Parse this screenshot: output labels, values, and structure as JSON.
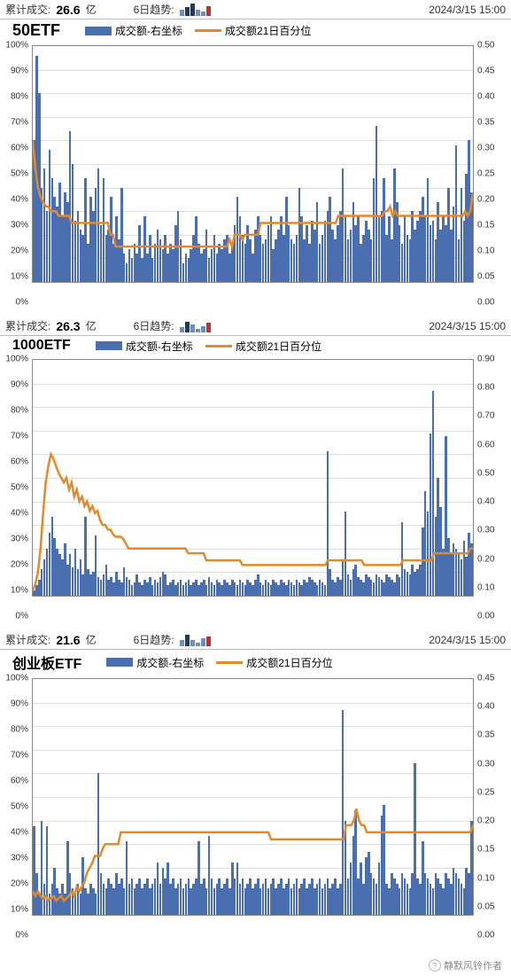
{
  "meta": {
    "timestamp": "2024/3/15 15:00",
    "cum_label": "累计成交:",
    "cum_unit": "亿",
    "trend_label": "6日趋势:",
    "legend_bar": "成交额-右坐标",
    "legend_line": "成交额21日百分位",
    "watermark": "静默风铃作者"
  },
  "colors": {
    "bar": "#4a6fb0",
    "line": "#e28a2b",
    "axis": "#888888",
    "grid": "#dddddd",
    "text": "#333333",
    "bg": "#ffffff",
    "spark_light": "#6a8fc8",
    "spark_dark": "#1a3a70",
    "spark_red": "#c03030"
  },
  "panels": [
    {
      "title": "50ETF",
      "cum_value": "26.6",
      "spark_heights": [
        7,
        10,
        14,
        7,
        5,
        11
      ],
      "spark_colors": [
        "#6a8fc8",
        "#1a3a70",
        "#1a3a70",
        "#6a8fc8",
        "#6a8fc8",
        "#c03030"
      ],
      "left_axis": {
        "min": 0,
        "max": 100,
        "step": 10,
        "suffix": "%"
      },
      "right_axis": {
        "min": 0.0,
        "max": 0.5,
        "step": 0.05,
        "decimals": 2
      },
      "bars": [
        0.3,
        0.48,
        0.4,
        0.2,
        0.24,
        0.15,
        0.28,
        0.22,
        0.18,
        0.16,
        0.21,
        0.14,
        0.19,
        0.17,
        0.32,
        0.25,
        0.13,
        0.15,
        0.11,
        0.1,
        0.22,
        0.08,
        0.18,
        0.15,
        0.2,
        0.24,
        0.12,
        0.22,
        0.1,
        0.11,
        0.18,
        0.08,
        0.14,
        0.09,
        0.2,
        0.06,
        0.04,
        0.07,
        0.05,
        0.08,
        0.06,
        0.12,
        0.05,
        0.14,
        0.06,
        0.1,
        0.05,
        0.08,
        0.11,
        0.09,
        0.07,
        0.1,
        0.06,
        0.08,
        0.07,
        0.12,
        0.15,
        0.09,
        0.04,
        0.06,
        0.05,
        0.07,
        0.1,
        0.14,
        0.08,
        0.06,
        0.07,
        0.11,
        0.05,
        0.07,
        0.1,
        0.06,
        0.08,
        0.07,
        0.09,
        0.1,
        0.06,
        0.08,
        0.12,
        0.18,
        0.14,
        0.1,
        0.08,
        0.12,
        0.09,
        0.06,
        0.11,
        0.14,
        0.1,
        0.08,
        0.09,
        0.12,
        0.14,
        0.07,
        0.09,
        0.11,
        0.14,
        0.1,
        0.18,
        0.12,
        0.09,
        0.08,
        0.1,
        0.2,
        0.14,
        0.09,
        0.12,
        0.08,
        0.13,
        0.11,
        0.17,
        0.08,
        0.1,
        0.13,
        0.15,
        0.18,
        0.11,
        0.09,
        0.12,
        0.15,
        0.24,
        0.14,
        0.09,
        0.11,
        0.17,
        0.12,
        0.14,
        0.08,
        0.1,
        0.13,
        0.11,
        0.09,
        0.22,
        0.33,
        0.14,
        0.15,
        0.22,
        0.1,
        0.14,
        0.09,
        0.24,
        0.17,
        0.12,
        0.08,
        0.14,
        0.1,
        0.09,
        0.15,
        0.11,
        0.13,
        0.15,
        0.18,
        0.14,
        0.22,
        0.12,
        0.13,
        0.09,
        0.17,
        0.11,
        0.14,
        0.12,
        0.2,
        0.11,
        0.16,
        0.29,
        0.09,
        0.2,
        0.13,
        0.23,
        0.3,
        0.19
      ],
      "line": [
        60,
        48,
        40,
        36,
        34,
        32,
        32,
        30,
        30,
        30,
        28,
        28,
        28,
        28,
        28,
        25,
        25,
        25,
        25,
        25,
        25,
        25,
        25,
        25,
        25,
        25,
        25,
        25,
        25,
        25,
        20,
        20,
        15,
        15,
        15,
        15,
        15,
        15,
        15,
        15,
        15,
        15,
        15,
        15,
        15,
        15,
        15,
        15,
        15,
        15,
        15,
        15,
        15,
        15,
        15,
        15,
        15,
        15,
        15,
        15,
        15,
        15,
        15,
        15,
        15,
        15,
        15,
        15,
        15,
        15,
        15,
        15,
        15,
        15,
        15,
        15,
        18,
        15,
        20,
        20,
        20,
        18,
        20,
        20,
        20,
        20,
        20,
        20,
        25,
        25,
        25,
        25,
        25,
        25,
        25,
        25,
        25,
        25,
        25,
        25,
        25,
        25,
        25,
        25,
        25,
        25,
        25,
        25,
        25,
        25,
        25,
        25,
        25,
        25,
        25,
        25,
        25,
        25,
        28,
        28,
        28,
        28,
        28,
        28,
        28,
        28,
        28,
        28,
        28,
        28,
        28,
        28,
        28,
        28,
        28,
        28,
        30,
        30,
        32,
        28,
        30,
        28,
        28,
        28,
        28,
        28,
        28,
        28,
        28,
        28,
        28,
        28,
        28,
        28,
        28,
        28,
        28,
        28,
        28,
        28,
        28,
        28,
        28,
        28,
        28,
        28,
        28,
        30,
        28,
        30,
        38
      ]
    },
    {
      "title": "1000ETF",
      "cum_value": "26.3",
      "spark_heights": [
        6,
        12,
        9,
        4,
        7,
        11
      ],
      "spark_colors": [
        "#6a8fc8",
        "#1a3a70",
        "#6a8fc8",
        "#6a8fc8",
        "#6a8fc8",
        "#c03030"
      ],
      "left_axis": {
        "min": 0,
        "max": 100,
        "step": 10,
        "suffix": "%"
      },
      "right_axis": {
        "min": 0.0,
        "max": 0.9,
        "step": 0.1,
        "decimals": 2
      },
      "bars": [
        0.02,
        0.04,
        0.06,
        0.1,
        0.14,
        0.18,
        0.24,
        0.3,
        0.22,
        0.18,
        0.16,
        0.14,
        0.2,
        0.12,
        0.16,
        0.11,
        0.18,
        0.1,
        0.14,
        0.08,
        0.3,
        0.1,
        0.08,
        0.09,
        0.23,
        0.07,
        0.06,
        0.08,
        0.12,
        0.06,
        0.07,
        0.05,
        0.09,
        0.06,
        0.05,
        0.11,
        0.07,
        0.06,
        0.04,
        0.05,
        0.08,
        0.05,
        0.04,
        0.06,
        0.05,
        0.07,
        0.04,
        0.06,
        0.05,
        0.07,
        0.09,
        0.08,
        0.04,
        0.05,
        0.06,
        0.04,
        0.05,
        0.06,
        0.04,
        0.05,
        0.06,
        0.04,
        0.05,
        0.06,
        0.04,
        0.05,
        0.06,
        0.04,
        0.07,
        0.05,
        0.04,
        0.06,
        0.05,
        0.04,
        0.06,
        0.05,
        0.04,
        0.06,
        0.05,
        0.04,
        0.06,
        0.05,
        0.04,
        0.06,
        0.05,
        0.04,
        0.06,
        0.08,
        0.05,
        0.04,
        0.06,
        0.05,
        0.04,
        0.06,
        0.05,
        0.04,
        0.06,
        0.05,
        0.04,
        0.06,
        0.05,
        0.04,
        0.06,
        0.05,
        0.04,
        0.06,
        0.05,
        0.07,
        0.06,
        0.05,
        0.04,
        0.06,
        0.05,
        0.04,
        0.55,
        0.1,
        0.06,
        0.05,
        0.07,
        0.06,
        0.14,
        0.32,
        0.08,
        0.06,
        0.1,
        0.12,
        0.07,
        0.06,
        0.05,
        0.08,
        0.07,
        0.06,
        0.05,
        0.08,
        0.07,
        0.06,
        0.05,
        0.08,
        0.07,
        0.06,
        0.05,
        0.08,
        0.07,
        0.28,
        0.1,
        0.09,
        0.08,
        0.12,
        0.09,
        0.1,
        0.12,
        0.26,
        0.4,
        0.32,
        0.62,
        0.78,
        0.3,
        0.45,
        0.34,
        0.18,
        0.61,
        0.22,
        0.16,
        0.2,
        0.18,
        0.16,
        0.14,
        0.21,
        0.15,
        0.24,
        0.2
      ],
      "line": [
        2,
        5,
        10,
        20,
        35,
        48,
        55,
        60,
        58,
        55,
        52,
        50,
        48,
        50,
        45,
        48,
        42,
        45,
        40,
        42,
        38,
        40,
        36,
        38,
        35,
        36,
        32,
        30,
        30,
        28,
        28,
        26,
        25,
        25,
        25,
        24,
        22,
        20,
        20,
        20,
        20,
        20,
        20,
        20,
        20,
        20,
        20,
        20,
        20,
        20,
        20,
        20,
        20,
        20,
        20,
        20,
        20,
        20,
        20,
        20,
        18,
        18,
        18,
        18,
        18,
        18,
        18,
        15,
        15,
        15,
        15,
        15,
        15,
        15,
        15,
        15,
        15,
        15,
        15,
        15,
        15,
        13,
        13,
        13,
        13,
        13,
        13,
        13,
        13,
        13,
        13,
        13,
        13,
        13,
        13,
        13,
        13,
        13,
        13,
        13,
        13,
        13,
        13,
        13,
        13,
        13,
        13,
        13,
        13,
        13,
        13,
        13,
        13,
        13,
        15,
        15,
        15,
        15,
        15,
        15,
        15,
        15,
        15,
        15,
        15,
        15,
        15,
        15,
        13,
        13,
        13,
        13,
        13,
        13,
        13,
        13,
        13,
        13,
        13,
        13,
        13,
        13,
        13,
        15,
        15,
        15,
        15,
        15,
        15,
        15,
        15,
        15,
        15,
        15,
        15,
        18,
        18,
        18,
        18,
        18,
        18,
        18,
        18,
        18,
        18,
        18,
        18,
        18,
        18,
        20,
        20
      ]
    },
    {
      "title": "创业板ETF",
      "cum_value": "21.6",
      "spark_heights": [
        7,
        13,
        7,
        4,
        9,
        11
      ],
      "spark_colors": [
        "#6a8fc8",
        "#1a3a70",
        "#6a8fc8",
        "#6a8fc8",
        "#6a8fc8",
        "#c03030"
      ],
      "left_axis": {
        "min": 0,
        "max": 100,
        "step": 10,
        "suffix": "%"
      },
      "right_axis": {
        "min": 0.0,
        "max": 0.45,
        "step": 0.05,
        "decimals": 2
      },
      "bars": [
        0.17,
        0.08,
        0.04,
        0.18,
        0.06,
        0.17,
        0.04,
        0.06,
        0.09,
        0.05,
        0.04,
        0.06,
        0.04,
        0.14,
        0.08,
        0.05,
        0.04,
        0.06,
        0.04,
        0.11,
        0.05,
        0.04,
        0.06,
        0.05,
        0.04,
        0.27,
        0.08,
        0.06,
        0.05,
        0.07,
        0.06,
        0.05,
        0.08,
        0.06,
        0.07,
        0.05,
        0.14,
        0.06,
        0.07,
        0.05,
        0.06,
        0.07,
        0.05,
        0.06,
        0.07,
        0.05,
        0.06,
        0.07,
        0.1,
        0.06,
        0.09,
        0.07,
        0.1,
        0.06,
        0.07,
        0.05,
        0.06,
        0.07,
        0.05,
        0.06,
        0.07,
        0.05,
        0.06,
        0.07,
        0.14,
        0.06,
        0.07,
        0.05,
        0.15,
        0.07,
        0.05,
        0.06,
        0.07,
        0.05,
        0.06,
        0.07,
        0.05,
        0.1,
        0.07,
        0.1,
        0.06,
        0.07,
        0.05,
        0.06,
        0.07,
        0.05,
        0.06,
        0.07,
        0.05,
        0.06,
        0.07,
        0.05,
        0.06,
        0.07,
        0.05,
        0.06,
        0.07,
        0.05,
        0.06,
        0.07,
        0.05,
        0.06,
        0.07,
        0.05,
        0.06,
        0.07,
        0.05,
        0.06,
        0.07,
        0.05,
        0.06,
        0.07,
        0.05,
        0.06,
        0.07,
        0.05,
        0.06,
        0.07,
        0.05,
        0.06,
        0.39,
        0.18,
        0.07,
        0.1,
        0.15,
        0.2,
        0.07,
        0.1,
        0.06,
        0.11,
        0.12,
        0.08,
        0.07,
        0.06,
        0.1,
        0.19,
        0.21,
        0.06,
        0.05,
        0.08,
        0.07,
        0.06,
        0.05,
        0.08,
        0.07,
        0.06,
        0.05,
        0.08,
        0.29,
        0.07,
        0.06,
        0.14,
        0.08,
        0.07,
        0.06,
        0.05,
        0.08,
        0.07,
        0.06,
        0.05,
        0.08,
        0.07,
        0.06,
        0.09,
        0.08,
        0.07,
        0.06,
        0.05,
        0.09,
        0.08,
        0.18
      ],
      "line": [
        10,
        8,
        10,
        8,
        7,
        8,
        6,
        7,
        8,
        6,
        7,
        8,
        6,
        7,
        8,
        10,
        8,
        12,
        10,
        12,
        14,
        18,
        20,
        22,
        25,
        25,
        25,
        28,
        30,
        30,
        30,
        30,
        30,
        30,
        35,
        35,
        35,
        35,
        35,
        35,
        35,
        35,
        35,
        35,
        35,
        35,
        35,
        35,
        35,
        35,
        35,
        35,
        35,
        35,
        35,
        35,
        35,
        35,
        35,
        35,
        35,
        35,
        35,
        35,
        35,
        35,
        35,
        35,
        35,
        35,
        35,
        35,
        35,
        35,
        35,
        35,
        35,
        35,
        35,
        35,
        35,
        35,
        35,
        35,
        35,
        35,
        35,
        35,
        35,
        35,
        35,
        35,
        32,
        32,
        32,
        32,
        32,
        32,
        32,
        32,
        32,
        32,
        32,
        32,
        32,
        32,
        32,
        32,
        32,
        32,
        32,
        32,
        32,
        32,
        32,
        32,
        32,
        32,
        32,
        32,
        32,
        38,
        38,
        38,
        40,
        45,
        40,
        38,
        38,
        35,
        35,
        35,
        35,
        35,
        35,
        35,
        35,
        35,
        35,
        35,
        35,
        35,
        35,
        35,
        35,
        35,
        35,
        35,
        35,
        35,
        35,
        35,
        35,
        35,
        35,
        35,
        35,
        35,
        35,
        35,
        35,
        35,
        35,
        35,
        35,
        35,
        35,
        35,
        35,
        35,
        38
      ]
    }
  ]
}
